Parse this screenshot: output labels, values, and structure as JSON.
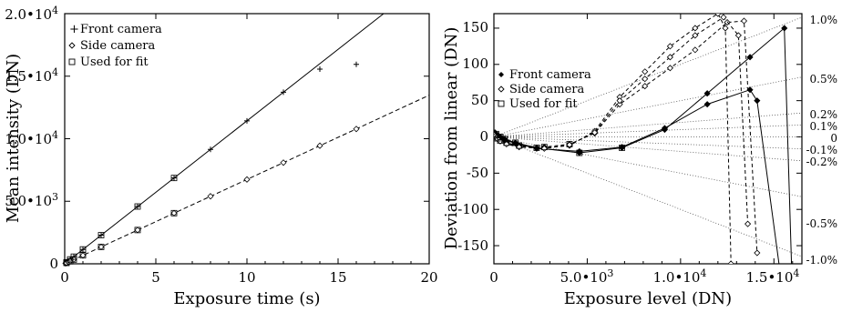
{
  "chart_data": [
    {
      "type": "scatter",
      "xlabel": "Exposure time (s)",
      "ylabel": "Mean intensity (DN)",
      "xlim": [
        0,
        20
      ],
      "ylim": [
        0,
        20000
      ],
      "x_ticks": [
        "0",
        "5",
        "10",
        "15",
        "20"
      ],
      "y_ticks": [
        {
          "mant": "0",
          "exp": ""
        },
        {
          "mant": "5.0•10",
          "exp": "3"
        },
        {
          "mant": "1.0•10",
          "exp": "4"
        },
        {
          "mant": "1.5•10",
          "exp": "4"
        },
        {
          "mant": "2.0•10",
          "exp": "4"
        }
      ],
      "legend": {
        "position": "top-left",
        "entries": [
          "Front camera",
          "Side camera",
          "Used for fit"
        ]
      },
      "series": [
        {
          "name": "Front camera",
          "marker": "plus",
          "x": [
            0.05,
            0.1,
            0.2,
            0.3,
            0.5,
            1,
            2,
            4,
            6,
            8,
            10,
            12,
            14,
            16
          ],
          "y": [
            60,
            120,
            230,
            350,
            570,
            1150,
            2290,
            4580,
            6860,
            9150,
            11430,
            13720,
            15560,
            15950
          ]
        },
        {
          "name": "Side camera",
          "marker": "diamond",
          "x": [
            0.05,
            0.1,
            0.2,
            0.3,
            0.5,
            1,
            2,
            4,
            6,
            8,
            10,
            12,
            14,
            16
          ],
          "y": [
            35,
            70,
            135,
            200,
            340,
            675,
            1350,
            2700,
            4050,
            5400,
            6740,
            8090,
            9440,
            10780
          ]
        },
        {
          "name": "Used for fit",
          "marker": "square",
          "x": [
            0.1,
            0.3,
            0.5,
            1,
            2,
            4,
            6,
            0.1,
            0.3,
            0.5,
            1,
            2,
            4,
            6
          ],
          "y": [
            120,
            350,
            570,
            1150,
            2290,
            4580,
            6860,
            70,
            200,
            340,
            675,
            1350,
            2700,
            4050
          ]
        }
      ],
      "fit_lines": [
        {
          "style": "solid",
          "slope": 1143,
          "intercept": 0
        },
        {
          "style": "dashed",
          "slope": 674,
          "intercept": 0
        }
      ]
    },
    {
      "type": "line",
      "xlabel": "Exposure level (DN)",
      "ylabel": "Deviation from linear (DN)",
      "xlim": [
        0,
        16500
      ],
      "ylim": [
        -175,
        170
      ],
      "x_ticks": [
        {
          "mant": "0",
          "exp": ""
        },
        {
          "mant": "5.0•10",
          "exp": "3"
        },
        {
          "mant": "1.0•10",
          "exp": "4"
        },
        {
          "mant": "1.5•10",
          "exp": "4"
        }
      ],
      "y_ticks": [
        "-150",
        "-100",
        "-50",
        "0",
        "50",
        "100",
        "150"
      ],
      "legend": {
        "position": "middle-left",
        "entries": [
          "Front camera",
          "Side camera",
          "Used for fit"
        ]
      },
      "percent_labels": [
        "1.0%",
        "0.5%",
        "0.2%",
        "0.1%",
        "0",
        "-0.1%",
        "-0.2%",
        "-0.5%",
        "-1.0%"
      ],
      "percent_values": [
        0.01,
        0.005,
        0.002,
        0.001,
        0,
        -0.001,
        -0.002,
        -0.005,
        -0.01
      ],
      "series": [
        {
          "name": "Front camera",
          "style": "solid",
          "x": [
            60,
            120,
            230,
            350,
            570,
            1150,
            2290,
            4580,
            6860,
            9150,
            11430,
            13720,
            15560,
            15950
          ],
          "y": [
            6,
            4,
            2,
            0,
            -3,
            -8,
            -15,
            -22,
            -15,
            10,
            60,
            110,
            150,
            -180
          ]
        },
        {
          "name": "Front camera",
          "style": "solid",
          "x": [
            60,
            120,
            230,
            350,
            570,
            1150,
            2290,
            4580,
            6860,
            9150,
            11430,
            13720,
            14100,
            15300
          ],
          "y": [
            5,
            3,
            1,
            -1,
            -4,
            -9,
            -16,
            -20,
            -14,
            12,
            45,
            65,
            50,
            -180
          ]
        },
        {
          "name": "Side camera",
          "style": "dashed",
          "x": [
            35,
            70,
            135,
            200,
            340,
            675,
            1350,
            2700,
            4050,
            5400,
            6740,
            8090,
            9440,
            10780,
            12500,
            13400,
            14100
          ],
          "y": [
            4,
            2,
            0,
            -2,
            -5,
            -8,
            -12,
            -14,
            -10,
            5,
            45,
            70,
            95,
            120,
            158,
            160,
            -160
          ]
        },
        {
          "name": "Side camera",
          "style": "dashed",
          "x": [
            35,
            70,
            135,
            200,
            340,
            675,
            1350,
            2700,
            4050,
            5400,
            6740,
            8090,
            9440,
            10780,
            12000,
            12400,
            12700
          ],
          "y": [
            4,
            2,
            0,
            -2,
            -5,
            -9,
            -13,
            -15,
            -12,
            8,
            55,
            90,
            125,
            150,
            170,
            150,
            -175
          ]
        },
        {
          "name": "Side camera",
          "style": "dashed",
          "x": [
            35,
            70,
            135,
            200,
            340,
            675,
            1350,
            2700,
            4050,
            5400,
            6740,
            8090,
            9440,
            10780,
            12300,
            13100,
            13600
          ],
          "y": [
            3,
            1,
            -1,
            -3,
            -6,
            -10,
            -14,
            -16,
            -11,
            6,
            50,
            80,
            110,
            140,
            165,
            140,
            -120
          ]
        },
        {
          "name": "Used for fit",
          "style": "none",
          "x": [
            120,
            350,
            570,
            1150,
            2290,
            4580,
            6860,
            70,
            200,
            340,
            675,
            1350,
            2700,
            4050
          ],
          "y": [
            4,
            0,
            -3,
            -8,
            -15,
            -22,
            -15,
            2,
            -2,
            -5,
            -8,
            -12,
            -14,
            -10
          ]
        }
      ]
    }
  ]
}
